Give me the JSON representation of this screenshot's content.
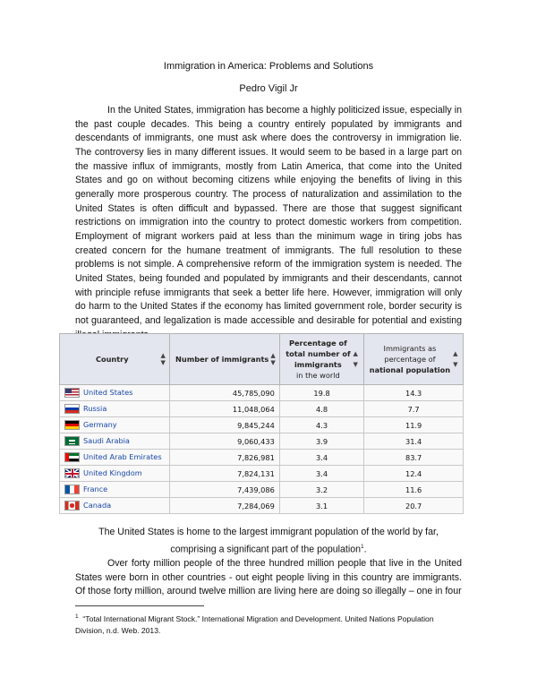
{
  "title": "Immigration in America: Problems and Solutions",
  "author": "Pedro Vigil Jr",
  "paragraph1": "In the United States, immigration has become a highly politicized issue, especially in the past couple decades. This being a country entirely populated by immigrants and descendants of immigrants, one must ask where does the controversy in immigration lie. The controversy lies in many different issues. It would seem to be based in a large part on the massive influx of immigrants, mostly from Latin America, that come into the United States and go on without becoming citizens while enjoying the benefits of living in this generally more prosperous country. The process of naturalization and assimilation to the United States is often difficult and bypassed. There are those that suggest significant restrictions on immigration into the country to protect domestic workers from competition. Employment of migrant workers paid at less than the minimum wage in tiring jobs has created concern for the humane treatment of immigrants. The full resolution to these problems is not simple. A comprehensive reform of the immigration system is needed. The United States, being founded and populated by immigrants and their descendants, cannot with principle refuse immigrants that seek a better life here. However, immigration will only do harm to the United States if the economy has limited government role, border security is not guaranteed, and legalization is made accessible and desirable for potential and existing illegal immigrants.",
  "table": {
    "headers": {
      "country": "Country",
      "number": "Number of immigrants",
      "percent_line1": "Percentage of",
      "percent_line2": "total number of",
      "percent_line3": "immigrants",
      "percent_line4": "in the world",
      "national_line1": "Immigrants as",
      "national_line2": "percentage of",
      "national_line3": "national population"
    },
    "rows": [
      {
        "country": "United States",
        "number": "45,785,090",
        "percent": "19.8",
        "national": "14.3",
        "flag": "us-flag"
      },
      {
        "country": "Russia",
        "number": "11,048,064",
        "percent": "4.8",
        "national": "7.7",
        "flag": "russia-flag"
      },
      {
        "country": "Germany",
        "number": "9,845,244",
        "percent": "4.3",
        "national": "11.9",
        "flag": "germany-flag"
      },
      {
        "country": "Saudi Arabia",
        "number": "9,060,433",
        "percent": "3.9",
        "national": "31.4",
        "flag": "saudi-arabia-flag"
      },
      {
        "country": "United Arab Emirates",
        "number": "7,826,981",
        "percent": "3.4",
        "national": "83.7",
        "flag": "uae-flag"
      },
      {
        "country": "United Kingdom",
        "number": "7,824,131",
        "percent": "3.4",
        "national": "12.4",
        "flag": "uk-flag"
      },
      {
        "country": "France",
        "number": "7,439,086",
        "percent": "3.2",
        "national": "11.6",
        "flag": "france-flag"
      },
      {
        "country": "Canada",
        "number": "7,284,069",
        "percent": "3.1",
        "national": "20.7",
        "flag": "canada-flag"
      }
    ]
  },
  "caption": "The United States is home to the largest immigrant population of the world by far, comprising a significant part of the population",
  "caption_sup": "1",
  "paragraph2": "Over forty million people of the three hundred million people that live in the United States were born in other countries - out eight people living in this country are immigrants. Of those forty million, around twelve million are living here are doing so illegally – one in four",
  "footnote_marker": "1",
  "footnote": "“Total International Migrant Stock.” International Migration and Development. United Nations Population Division, n.d. Web. 2013.",
  "colors": {
    "link": "#1a47a8",
    "header_bg": "#e3e6ee",
    "cell_bg": "#f9f9f9"
  }
}
